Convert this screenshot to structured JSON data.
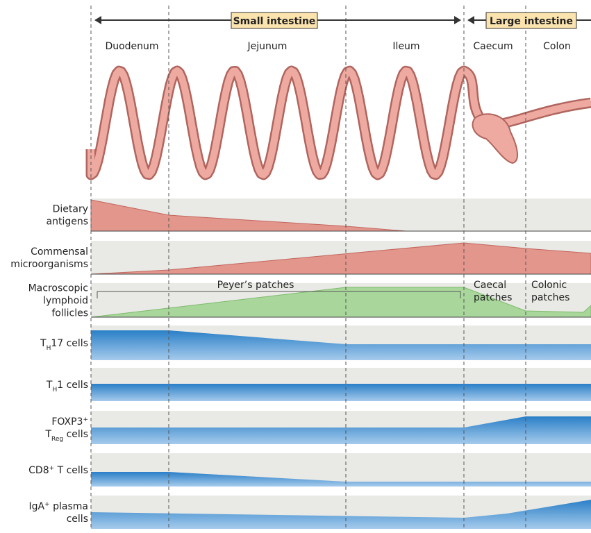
{
  "header": {
    "small_intestine": "Small intestine",
    "large_intestine": "Large intestine"
  },
  "segments": [
    "Duodenum",
    "Jejunum",
    "Ileum",
    "Caecum",
    "Colon"
  ],
  "rows": [
    {
      "lines": [
        [
          "Dietary"
        ],
        [
          "antigens"
        ]
      ]
    },
    {
      "lines": [
        [
          "Commensal"
        ],
        [
          "microorganisms"
        ]
      ]
    },
    {
      "lines": [
        [
          "Macroscopic"
        ],
        [
          "lymphoid"
        ],
        [
          "follicles"
        ]
      ]
    },
    {
      "lines": [
        [
          "T",
          "H",
          "17 cells"
        ]
      ]
    },
    {
      "lines": [
        [
          "T",
          "H",
          "1 cells"
        ]
      ]
    },
    {
      "lines": [
        [
          "FOXP3",
          "+"
        ],
        [
          "T",
          "Reg",
          " cells"
        ]
      ]
    },
    {
      "lines": [
        [
          "CD8",
          "+",
          " T cells"
        ]
      ]
    },
    {
      "lines": [
        [
          "IgA",
          "+",
          " plasma"
        ],
        [
          "cells"
        ]
      ]
    }
  ],
  "annotations": {
    "peyers": "Peyer’s patches",
    "caecal": [
      "Caecal",
      "patches"
    ],
    "colonic": [
      "Colonic",
      "patches"
    ]
  }
}
